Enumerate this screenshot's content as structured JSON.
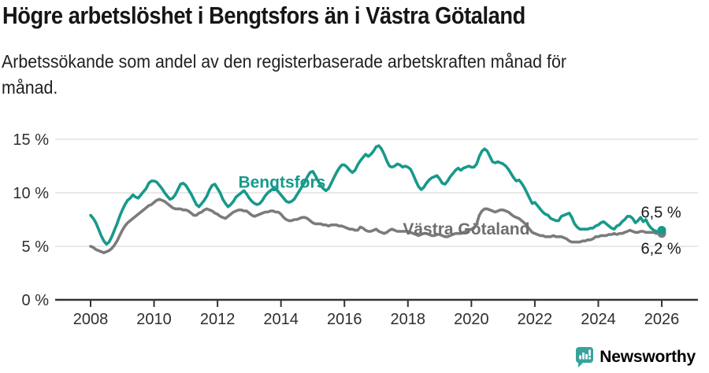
{
  "header": {
    "title": "Högre arbetslöshet i Bengtsfors än i Västra Götaland",
    "subtitle": "Arbetssökande som andel av den registerbaserade arbetskraften månad för\nmånad."
  },
  "chart_data": {
    "type": "line",
    "x_start_year": 2008,
    "x_step_months": 1,
    "x_ticks": [
      2008,
      2010,
      2012,
      2014,
      2016,
      2018,
      2020,
      2022,
      2024,
      2026
    ],
    "y_ticks": [
      {
        "value": 0,
        "label": "0 %"
      },
      {
        "value": 5,
        "label": "5 %"
      },
      {
        "value": 10,
        "label": "10 %"
      },
      {
        "value": 15,
        "label": "15 %"
      }
    ],
    "ylim": [
      0,
      16.2
    ],
    "grid": true,
    "colors": {
      "grid": "#d9d9d9",
      "axis": "#333333",
      "tick_text": "#2e2e2e",
      "value_label": "#1a1a1a"
    },
    "series": [
      {
        "name": "Västra Götaland",
        "color": "#7b7b7b",
        "label_color": "#6e6e6e",
        "label_anchor": {
          "year": 2019.84,
          "pct": 6.6
        },
        "end_label": "6,2 %",
        "end_label_side": "below",
        "values": [
          5.0,
          4.9,
          4.7,
          4.6,
          4.5,
          4.4,
          4.5,
          4.6,
          4.8,
          5.1,
          5.5,
          6.0,
          6.5,
          6.9,
          7.2,
          7.4,
          7.6,
          7.8,
          8.0,
          8.2,
          8.4,
          8.6,
          8.8,
          8.9,
          9.1,
          9.3,
          9.4,
          9.3,
          9.2,
          9.0,
          8.8,
          8.6,
          8.5,
          8.5,
          8.5,
          8.4,
          8.4,
          8.3,
          8.1,
          7.9,
          7.9,
          8.1,
          8.2,
          8.4,
          8.5,
          8.4,
          8.3,
          8.1,
          8.0,
          7.8,
          7.7,
          7.6,
          7.8,
          8.0,
          8.2,
          8.3,
          8.4,
          8.4,
          8.3,
          8.3,
          8.1,
          7.9,
          7.8,
          7.9,
          8.0,
          8.1,
          8.2,
          8.2,
          8.3,
          8.3,
          8.2,
          8.2,
          8.0,
          7.7,
          7.5,
          7.4,
          7.4,
          7.5,
          7.5,
          7.6,
          7.7,
          7.7,
          7.6,
          7.4,
          7.2,
          7.1,
          7.1,
          7.1,
          7.0,
          7.0,
          6.9,
          7.0,
          7.0,
          7.0,
          6.9,
          6.9,
          6.8,
          6.7,
          6.6,
          6.6,
          6.5,
          6.5,
          6.8,
          6.7,
          6.5,
          6.4,
          6.4,
          6.5,
          6.6,
          6.4,
          6.3,
          6.2,
          6.3,
          6.5,
          6.6,
          6.5,
          6.4,
          6.4,
          6.4,
          6.4,
          6.4,
          6.3,
          6.2,
          6.1,
          6.0,
          6.1,
          6.2,
          6.2,
          6.1,
          6.0,
          6.0,
          6.1,
          6.1,
          6.0,
          5.9,
          5.9,
          6.0,
          6.1,
          6.2,
          6.2,
          6.2,
          6.3,
          6.4,
          6.5,
          6.6,
          6.7,
          7.1,
          7.9,
          8.3,
          8.5,
          8.5,
          8.4,
          8.3,
          8.2,
          8.3,
          8.4,
          8.4,
          8.3,
          8.2,
          8.0,
          7.8,
          7.7,
          7.6,
          7.4,
          7.2,
          6.9,
          6.6,
          6.3,
          6.2,
          6.1,
          6.0,
          6.0,
          5.9,
          5.9,
          5.9,
          6.0,
          5.9,
          5.9,
          5.9,
          5.8,
          5.7,
          5.5,
          5.4,
          5.4,
          5.4,
          5.4,
          5.5,
          5.5,
          5.6,
          5.6,
          5.7,
          5.9,
          5.9,
          6.0,
          6.0,
          6.0,
          6.1,
          6.1,
          6.2,
          6.1,
          6.2,
          6.2,
          6.3,
          6.4,
          6.5,
          6.4,
          6.3,
          6.3,
          6.4,
          6.4,
          6.3,
          6.3,
          6.3,
          6.3,
          6.2,
          6.2,
          6.2
        ]
      },
      {
        "name": "Bengtsfors",
        "color": "#17998b",
        "label_color": "#17998b",
        "label_anchor": {
          "year": 2014.03,
          "pct": 11.0
        },
        "end_label": "6,5 %",
        "end_label_side": "above",
        "values": [
          7.9,
          7.6,
          7.2,
          6.6,
          6.0,
          5.5,
          5.2,
          5.4,
          5.9,
          6.5,
          7.1,
          7.8,
          8.4,
          8.9,
          9.3,
          9.5,
          9.8,
          9.6,
          9.5,
          9.8,
          10.1,
          10.4,
          10.9,
          11.1,
          11.1,
          11.0,
          10.7,
          10.4,
          10.0,
          9.7,
          9.4,
          9.5,
          9.8,
          10.3,
          10.8,
          10.9,
          10.7,
          10.3,
          9.9,
          9.4,
          8.9,
          8.7,
          9.0,
          9.3,
          9.7,
          10.3,
          10.7,
          10.8,
          10.4,
          10.0,
          9.4,
          9.0,
          8.7,
          8.9,
          9.2,
          9.6,
          9.8,
          10.0,
          10.2,
          9.9,
          9.5,
          9.2,
          9.0,
          8.9,
          9.0,
          9.3,
          9.7,
          10.0,
          10.2,
          10.4,
          10.4,
          10.1,
          9.8,
          9.5,
          9.2,
          9.1,
          9.2,
          9.4,
          9.8,
          10.2,
          10.6,
          11.0,
          11.5,
          11.9,
          12.0,
          11.6,
          11.1,
          10.7,
          10.4,
          10.2,
          10.4,
          10.9,
          11.4,
          11.9,
          12.3,
          12.6,
          12.6,
          12.4,
          12.1,
          11.9,
          12.1,
          12.6,
          13.0,
          13.3,
          13.6,
          13.4,
          13.6,
          13.9,
          14.3,
          14.4,
          14.1,
          13.6,
          13.0,
          12.5,
          12.4,
          12.5,
          12.7,
          12.6,
          12.4,
          12.5,
          12.4,
          12.2,
          11.7,
          11.1,
          10.6,
          10.3,
          10.5,
          10.9,
          11.2,
          11.4,
          11.5,
          11.6,
          11.3,
          10.9,
          10.8,
          11.1,
          11.5,
          11.8,
          12.1,
          12.3,
          12.1,
          12.3,
          12.4,
          12.5,
          12.4,
          12.4,
          12.7,
          13.4,
          13.9,
          14.1,
          13.9,
          13.4,
          12.9,
          12.8,
          12.9,
          12.8,
          12.7,
          12.5,
          12.2,
          11.8,
          11.4,
          11.1,
          11.2,
          10.9,
          10.5,
          10.0,
          9.5,
          9.0,
          9.1,
          8.8,
          8.5,
          8.2,
          8.0,
          7.9,
          7.6,
          7.5,
          7.4,
          7.4,
          7.8,
          7.9,
          8.0,
          8.1,
          7.7,
          7.1,
          6.8,
          6.6,
          6.6,
          6.6,
          6.6,
          6.7,
          6.7,
          6.9,
          7.0,
          7.2,
          7.3,
          7.1,
          6.9,
          6.7,
          6.6,
          6.9,
          7.0,
          7.3,
          7.5,
          7.8,
          7.8,
          7.6,
          7.2,
          7.4,
          7.7,
          7.3,
          7.5,
          7.0,
          6.7,
          6.5,
          6.4,
          6.4,
          6.5
        ]
      }
    ]
  },
  "footer": {
    "brand": "Newsworthy",
    "brand_color": "#37a39c",
    "logo_icon": "bar-chart-speech-bubble"
  }
}
